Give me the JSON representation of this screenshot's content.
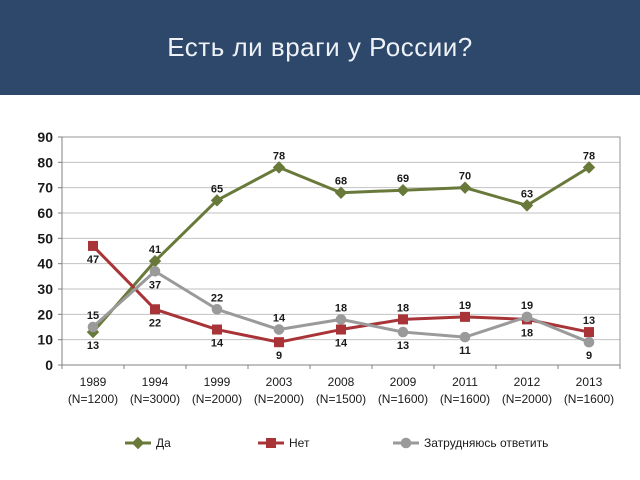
{
  "header": {
    "title": "Есть ли враги у России?",
    "bg_color": "#2d486a",
    "text_color": "#eef2f7"
  },
  "chart_data": {
    "type": "line",
    "title": "Есть ли враги у России?",
    "categories": [
      "1989",
      "1994",
      "1999",
      "2003",
      "2008",
      "2009",
      "2011",
      "2012",
      "2013"
    ],
    "category_sublabels": [
      "(N=1200)",
      "(N=3000)",
      "(N=2000)",
      "(N=2000)",
      "(N=1500)",
      "(N=1600)",
      "(N=1600)",
      "(N=2000)",
      "(N=1600)"
    ],
    "xlabel": "",
    "ylabel": "",
    "ylim": [
      0,
      90
    ],
    "ytick_step": 10,
    "grid": true,
    "legend_position": "bottom",
    "colors": {
      "grid": "#c2c2c2",
      "axis": "#808080",
      "plot_border": "#969696",
      "label_text": "#1a1a1a"
    },
    "series": [
      {
        "name": "Да",
        "color": "#68793a",
        "marker": "diamond",
        "values": [
          13,
          41,
          65,
          78,
          68,
          69,
          70,
          63,
          78
        ],
        "label_positions": [
          "below",
          "above",
          "above",
          "above",
          "above",
          "above",
          "above",
          "above",
          "above"
        ]
      },
      {
        "name": "Нет",
        "color": "#a93438",
        "marker": "square",
        "values": [
          47,
          22,
          14,
          9,
          14,
          18,
          19,
          18,
          13
        ],
        "label_positions": [
          "below",
          "below",
          "below",
          "below",
          "below",
          "above",
          "above",
          "below",
          "above"
        ]
      },
      {
        "name": "Затрудняюсь ответить",
        "color": "#9a9a9a",
        "marker": "circle",
        "values": [
          15,
          37,
          22,
          14,
          18,
          13,
          11,
          19,
          9
        ],
        "label_positions": [
          "above",
          "below",
          "above",
          "above",
          "above",
          "below",
          "below",
          "above",
          "below"
        ]
      }
    ]
  }
}
